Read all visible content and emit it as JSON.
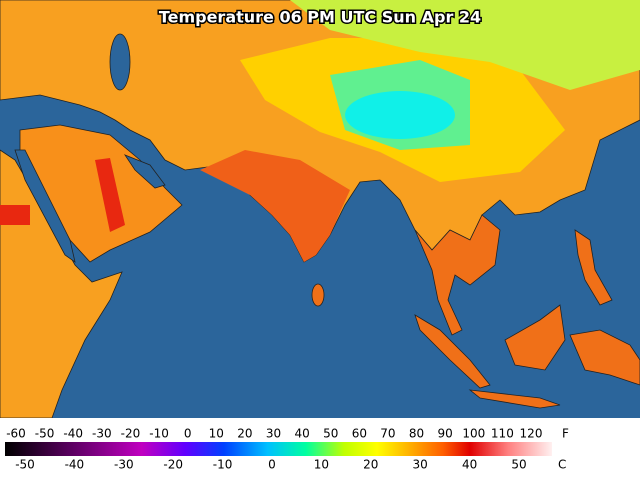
{
  "title": "Temperature 06 PM UTC Sun Apr 24",
  "legend": {
    "fahrenheit": {
      "unit": "F",
      "ticks": [
        -60,
        -50,
        -40,
        -30,
        -20,
        -10,
        0,
        10,
        20,
        30,
        40,
        50,
        60,
        70,
        80,
        90,
        100,
        110,
        120
      ]
    },
    "celsius": {
      "unit": "C",
      "ticks": [
        -50,
        -40,
        -30,
        -20,
        -10,
        0,
        10,
        20,
        30,
        40,
        50
      ]
    }
  }
}
